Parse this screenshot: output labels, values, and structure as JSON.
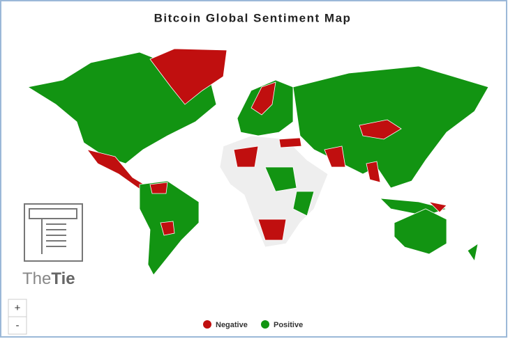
{
  "title": "Bitcoin Global Sentiment Map",
  "legend": [
    {
      "name": "Negative",
      "color": "#c00f0f"
    },
    {
      "name": "Positive",
      "color": "#129412"
    }
  ],
  "logo": {
    "prefix": "The",
    "suffix": "Tie"
  },
  "zoom": {
    "in": "+",
    "out": "-"
  }
}
